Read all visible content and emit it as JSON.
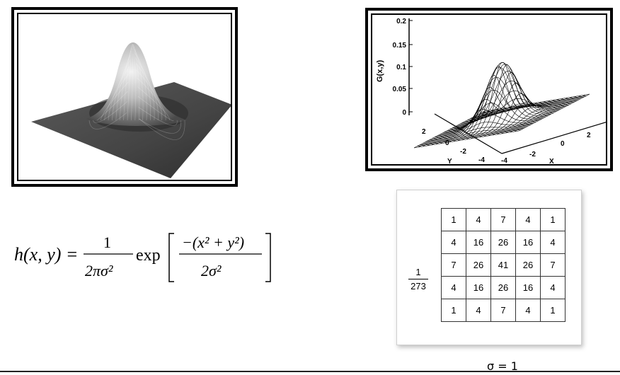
{
  "left_plot": {
    "kind": "shaded gaussian surface"
  },
  "right_plot": {
    "z_axis_label": "G(x,y)",
    "z_ticks": [
      "0.2",
      "0.15",
      "0.1",
      "0.05",
      "0"
    ],
    "y_axis_label": "Y",
    "y_ticks": [
      "2",
      "0",
      "-2",
      "-4"
    ],
    "x_axis_label": "X",
    "x_ticks": [
      "-4",
      "-2",
      "0",
      "2"
    ]
  },
  "formula": {
    "lhs": "h(x, y) =",
    "frac1_num": "1",
    "frac1_den": "2πσ²",
    "exp": "exp",
    "frac2_num": "−(x² + y²)",
    "frac2_den": "2σ²"
  },
  "kernel": {
    "normalization_num": "1",
    "normalization_den": "273",
    "rows": [
      [
        "1",
        "4",
        "7",
        "4",
        "1"
      ],
      [
        "4",
        "16",
        "26",
        "16",
        "4"
      ],
      [
        "7",
        "26",
        "41",
        "26",
        "7"
      ],
      [
        "4",
        "16",
        "26",
        "16",
        "4"
      ],
      [
        "1",
        "4",
        "7",
        "4",
        "1"
      ]
    ]
  },
  "sigma_label": "σ = 1"
}
